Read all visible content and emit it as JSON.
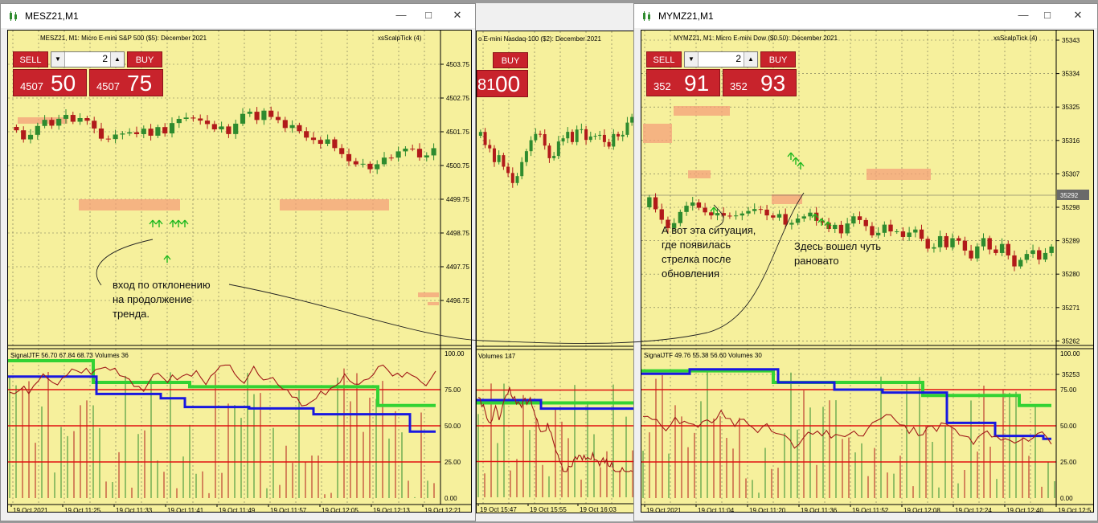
{
  "windows": {
    "left": {
      "title": "MESZ21,M1",
      "header_left": "MESZ21, M1:  Micro E-mini S&P 500 ($5): December 2021",
      "header_right": "xsScalpTick (4)",
      "trade": {
        "sell": "SELL",
        "buy": "BUY",
        "lot": "2",
        "sell_small": "4507",
        "sell_big": "50",
        "buy_small": "4507",
        "buy_big": "75"
      },
      "price_ticks": [
        "4503.75",
        "4502.75",
        "4501.75",
        "4500.75",
        "4499.75",
        "4498.75",
        "4497.75",
        "4496.75"
      ],
      "ind_header": "SignalJTF 56.70 67.84 68.73 Volumes 36",
      "ind_ticks": [
        "100.00",
        "75.00",
        "50.00",
        "25.00",
        "0.00"
      ],
      "time_ticks": [
        "19 Oct 2021",
        "19 Oct 11:25",
        "19 Oct 11:33",
        "19 Oct 11:41",
        "19 Oct 11:49",
        "19 Oct 11:57",
        "19 Oct 12:05",
        "19 Oct 12:13",
        "19 Oct 12:21"
      ],
      "note": "вход по отклонению\nна продолжение\nтренда."
    },
    "middle": {
      "header_left": "o E-mini Nasdaq-100 ($2): December 2021",
      "trade": {
        "buy": "BUY",
        "price_small": "81",
        "price_big": "00"
      },
      "ind_header": "Volumes 147",
      "time_ticks": [
        "19 Oct 15:47",
        "19 Oct 15:55",
        "19 Oct 16:03"
      ]
    },
    "right": {
      "title": "MYMZ21,M1",
      "header_left": "MYMZ21, M1:  Micro E-mini Dow ($0.50): December 2021",
      "header_right": "xsScalpTick (4)",
      "trade": {
        "sell": "SELL",
        "buy": "BUY",
        "lot": "2",
        "sell_small": "352",
        "sell_big": "91",
        "buy_small": "352",
        "buy_big": "93"
      },
      "price_ticks": [
        "35343",
        "35334",
        "35325",
        "35316",
        "35307",
        "35298",
        "35289",
        "35280",
        "35271",
        "35262",
        "35253"
      ],
      "current_price": "35292",
      "ind_header": "SignalJTF 49.76 55.38 56.60 Volumes 30",
      "ind_ticks": [
        "100.00",
        "75.00",
        "50.00",
        "25.00",
        "0.00"
      ],
      "time_ticks": [
        "19 Oct 2021",
        "19 Oct 11:04",
        "19 Oct 11:20",
        "19 Oct 11:36",
        "19 Oct 11:52",
        "19 Oct 12:08",
        "19 Oct 12:24",
        "19 Oct 12:40",
        "19 Oct 12:5"
      ],
      "note1": "А вот эта ситуация,\nгде появилась\nстрелка после\nобновления",
      "note2": "Здесь вошел чуть\nрановато"
    }
  },
  "colors": {
    "chart_bg": "#f6f09c",
    "bull": "#2e8b2e",
    "bear": "#b11a1a",
    "level": "#e01010",
    "fast_line": "#1818e0",
    "slow_line": "#33d233",
    "osc_line": "#a01818",
    "zone": "#f4a07a",
    "accent": "#c8232c"
  }
}
